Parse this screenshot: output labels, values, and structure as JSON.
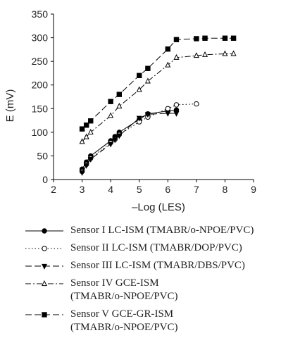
{
  "chart_data": {
    "type": "line",
    "xlabel": "–Log (LES)",
    "ylabel": "E (mV)",
    "xlim": [
      2,
      9
    ],
    "ylim": [
      0,
      350
    ],
    "xticks": [
      2,
      3,
      4,
      5,
      6,
      7,
      8,
      9
    ],
    "yticks": [
      0,
      50,
      100,
      150,
      200,
      250,
      300,
      350
    ],
    "grid": false,
    "legend_position": "below",
    "series": [
      {
        "name": "Sensor I LC-ISM (TMABR/o-NPOE/PVC)",
        "legend_lines": [
          "Sensor I LC-ISM (TMABR/o-NPOE/PVC)"
        ],
        "marker": "filled-circle",
        "dash": "solid",
        "color": "#000000",
        "x": [
          3.0,
          3.15,
          3.3,
          4.0,
          4.15,
          4.3,
          5.0,
          5.3,
          6.0,
          6.3
        ],
        "y": [
          22,
          37,
          50,
          82,
          91,
          100,
          127,
          139,
          145,
          147
        ]
      },
      {
        "name": "Sensor II LC-ISM (TMABR/DOP/PVC)",
        "legend_lines": [
          "Sensor II LC-ISM (TMABR/DOP/PVC)"
        ],
        "marker": "open-circle",
        "dash": "dotted",
        "color": "#000000",
        "x": [
          3.0,
          3.15,
          3.3,
          4.0,
          4.15,
          4.3,
          5.0,
          5.3,
          6.0,
          6.3,
          7.0
        ],
        "y": [
          17,
          32,
          45,
          78,
          85,
          95,
          122,
          132,
          150,
          158,
          160
        ]
      },
      {
        "name": "Sensor III LC-ISM (TMABR/DBS/PVC)",
        "legend_lines": [
          "Sensor III LC-ISM (TMABR/DBS/PVC)"
        ],
        "marker": "filled-triangle-down",
        "dash": "longdash",
        "color": "#000000",
        "x": [
          3.0,
          3.15,
          3.3,
          4.0,
          4.15,
          4.3,
          5.0,
          5.3,
          6.0,
          6.3
        ],
        "y": [
          15,
          30,
          43,
          75,
          84,
          93,
          130,
          138,
          140,
          140
        ]
      },
      {
        "name": "Sensor IV GCE-ISM (TMABR/o-NPOE/PVC)",
        "legend_lines": [
          "Sensor IV GCE-ISM",
          "(TMABR/o-NPOE/PVC)"
        ],
        "marker": "open-triangle-up",
        "dash": "dashdot",
        "color": "#000000",
        "x": [
          3.0,
          3.15,
          3.3,
          4.0,
          4.3,
          5.0,
          5.3,
          6.0,
          6.3,
          7.0,
          7.3,
          8.0,
          8.3
        ],
        "y": [
          80,
          90,
          100,
          135,
          155,
          190,
          208,
          242,
          258,
          262,
          264,
          266,
          266
        ]
      },
      {
        "name": "Sensor V GCE-GR-ISM (TMABR/o-NPOE/PVC)",
        "legend_lines": [
          "Sensor V GCE-GR-ISM",
          "(TMABR/o-NPOE/PVC)"
        ],
        "marker": "filled-square",
        "dash": "longdash",
        "color": "#000000",
        "x": [
          3.0,
          3.15,
          3.3,
          4.0,
          4.3,
          5.0,
          5.3,
          6.0,
          6.3,
          7.0,
          7.3,
          8.0,
          8.3
        ],
        "y": [
          107,
          115,
          124,
          165,
          180,
          220,
          235,
          276,
          296,
          298,
          299,
          299,
          299
        ]
      }
    ]
  }
}
